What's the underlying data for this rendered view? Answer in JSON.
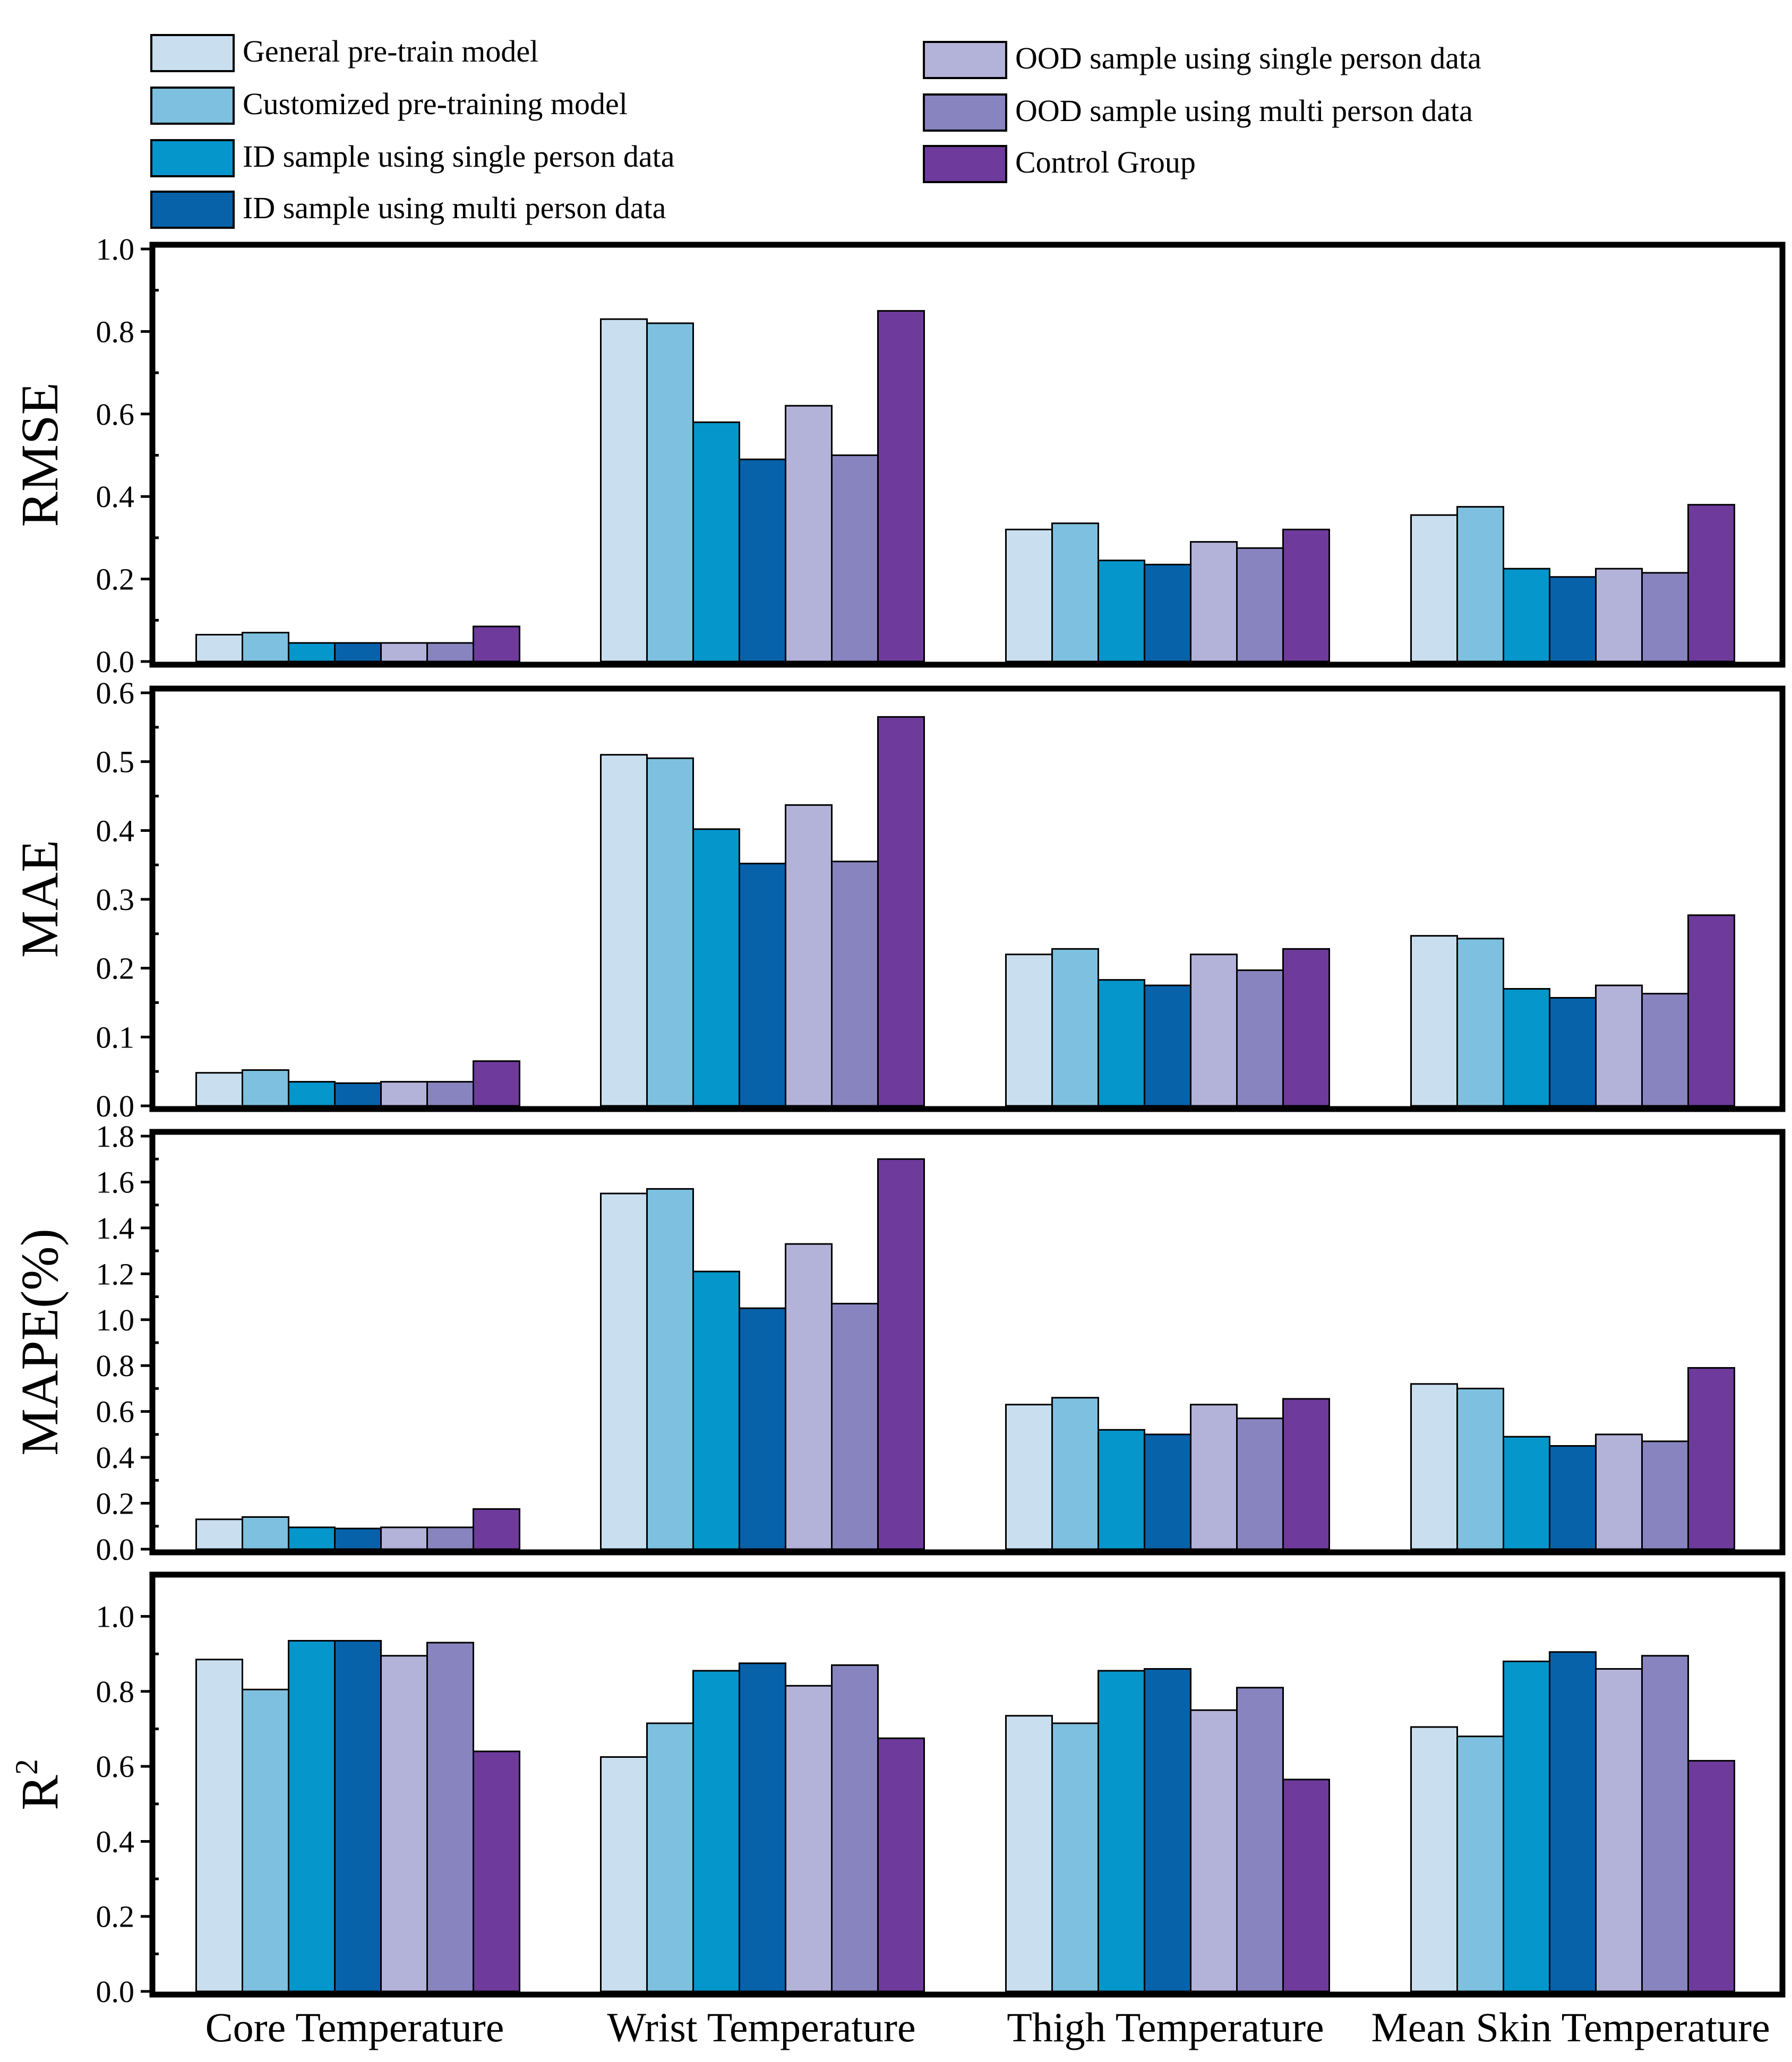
{
  "chart_data": {
    "type": "bar",
    "categories": [
      "Core Temperature",
      "Wrist Temperature",
      "Thigh Temperature",
      "Mean Skin Temperature"
    ],
    "series": [
      {
        "name": "General pre-train model",
        "color": "#c9dff0"
      },
      {
        "name": "Customized pre-training model",
        "color": "#7ec0df"
      },
      {
        "name": "ID sample using single person data",
        "color": "#0596cb"
      },
      {
        "name": "ID sample using multi person data",
        "color": "#0762aa"
      },
      {
        "name": "OOD sample using single person data",
        "color": "#b3b2d9"
      },
      {
        "name": "OOD sample using multi person data",
        "color": "#8784bf"
      },
      {
        "name": "Control Group",
        "color": "#6e3a9c"
      }
    ],
    "panels": [
      {
        "ylabel": "RMSE",
        "ylabel_sup": "",
        "ylim": [
          0,
          1.0
        ],
        "ticks": [
          "0.0",
          "0.2",
          "0.4",
          "0.6",
          "0.8",
          "1.0"
        ],
        "values": [
          [
            0.065,
            0.83,
            0.32,
            0.355
          ],
          [
            0.07,
            0.82,
            0.335,
            0.375
          ],
          [
            0.045,
            0.58,
            0.245,
            0.225
          ],
          [
            0.045,
            0.49,
            0.235,
            0.205
          ],
          [
            0.045,
            0.62,
            0.29,
            0.225
          ],
          [
            0.045,
            0.5,
            0.275,
            0.215
          ],
          [
            0.085,
            0.85,
            0.32,
            0.38
          ]
        ]
      },
      {
        "ylabel": "MAE",
        "ylabel_sup": "",
        "ylim": [
          0,
          0.6
        ],
        "ticks": [
          "0.0",
          "0.1",
          "0.2",
          "0.3",
          "0.4",
          "0.5",
          "0.6"
        ],
        "values": [
          [
            0.048,
            0.51,
            0.22,
            0.247
          ],
          [
            0.052,
            0.505,
            0.228,
            0.243
          ],
          [
            0.035,
            0.402,
            0.183,
            0.17
          ],
          [
            0.033,
            0.352,
            0.175,
            0.157
          ],
          [
            0.035,
            0.437,
            0.22,
            0.175
          ],
          [
            0.035,
            0.355,
            0.197,
            0.163
          ],
          [
            0.065,
            0.565,
            0.228,
            0.277
          ]
        ]
      },
      {
        "ylabel": "MAPE(%)",
        "ylabel_sup": "",
        "ylim": [
          0,
          1.8
        ],
        "ticks": [
          "0.0",
          "0.2",
          "0.4",
          "0.6",
          "0.8",
          "1.0",
          "1.2",
          "1.4",
          "1.6",
          "1.8"
        ],
        "values": [
          [
            0.13,
            1.55,
            0.63,
            0.72
          ],
          [
            0.14,
            1.57,
            0.66,
            0.7
          ],
          [
            0.095,
            1.21,
            0.52,
            0.49
          ],
          [
            0.09,
            1.05,
            0.5,
            0.45
          ],
          [
            0.095,
            1.33,
            0.63,
            0.5
          ],
          [
            0.095,
            1.07,
            0.57,
            0.47
          ],
          [
            0.175,
            1.7,
            0.655,
            0.79
          ]
        ]
      },
      {
        "ylabel": "R",
        "ylabel_sup": "2",
        "ylim": [
          0,
          1.1
        ],
        "ticks": [
          "0.0",
          "0.2",
          "0.4",
          "0.6",
          "0.8",
          "1.0"
        ],
        "values": [
          [
            0.885,
            0.625,
            0.735,
            0.705
          ],
          [
            0.805,
            0.715,
            0.715,
            0.68
          ],
          [
            0.935,
            0.855,
            0.855,
            0.88
          ],
          [
            0.935,
            0.875,
            0.86,
            0.905
          ],
          [
            0.895,
            0.815,
            0.75,
            0.86
          ],
          [
            0.93,
            0.87,
            0.81,
            0.895
          ],
          [
            0.64,
            0.675,
            0.565,
            0.615
          ]
        ]
      }
    ]
  }
}
